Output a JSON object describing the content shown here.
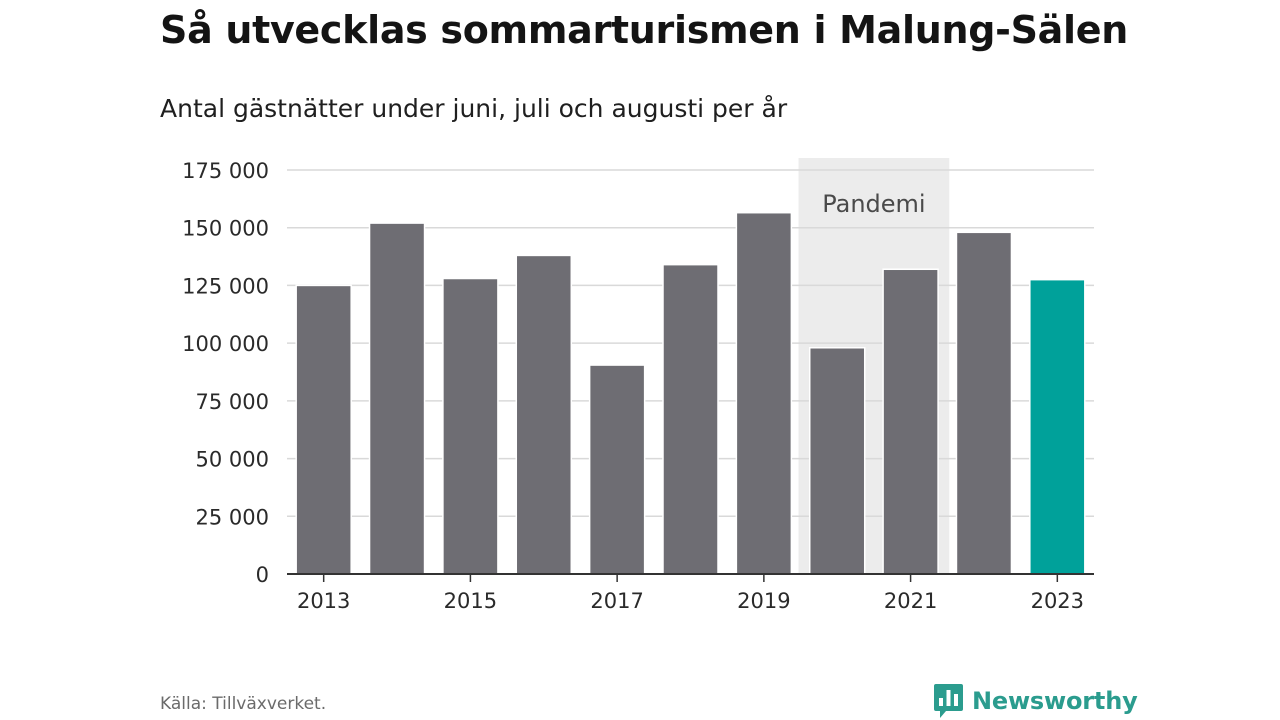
{
  "title": "Så utvecklas sommarturismen i Malung-Sälen",
  "subtitle": "Antal gästnätter under juni, juli och augusti per år",
  "source": "Källa: Tillväxverket.",
  "brand": {
    "name": "Newsworthy",
    "icon": "newsworthy-logo-icon",
    "color": "#2b9c8e"
  },
  "chart_data": {
    "type": "bar",
    "title": "Så utvecklas sommarturismen i Malung-Sälen",
    "subtitle": "Antal gästnätter under juni, juli och augusti per år",
    "categories": [
      "2013",
      "2014",
      "2015",
      "2016",
      "2017",
      "2018",
      "2019",
      "2020",
      "2021",
      "2022",
      "2023"
    ],
    "values": [
      125000,
      152000,
      128000,
      138000,
      90500,
      134000,
      156500,
      98000,
      132000,
      148000,
      127500
    ],
    "x_tick_labels": [
      "2013",
      "2015",
      "2017",
      "2019",
      "2021",
      "2023"
    ],
    "y_ticks": [
      0,
      25000,
      50000,
      75000,
      100000,
      125000,
      150000,
      175000
    ],
    "y_tick_labels": [
      "0",
      "25 000",
      "50 000",
      "75 000",
      "100 000",
      "125 000",
      "150 000",
      "175 000"
    ],
    "ylim": [
      0,
      175000
    ],
    "xlabel": "",
    "ylabel": "",
    "grid": true,
    "colors": {
      "bar": "#6e6d73",
      "highlight": "#00a19a",
      "highlight_category": "2023",
      "band": "#ececec",
      "grid": "#d9d9d9",
      "axis": "#333333"
    },
    "annotations": [
      {
        "type": "band",
        "label": "Pandemi",
        "from": "2020",
        "to": "2021"
      }
    ]
  }
}
